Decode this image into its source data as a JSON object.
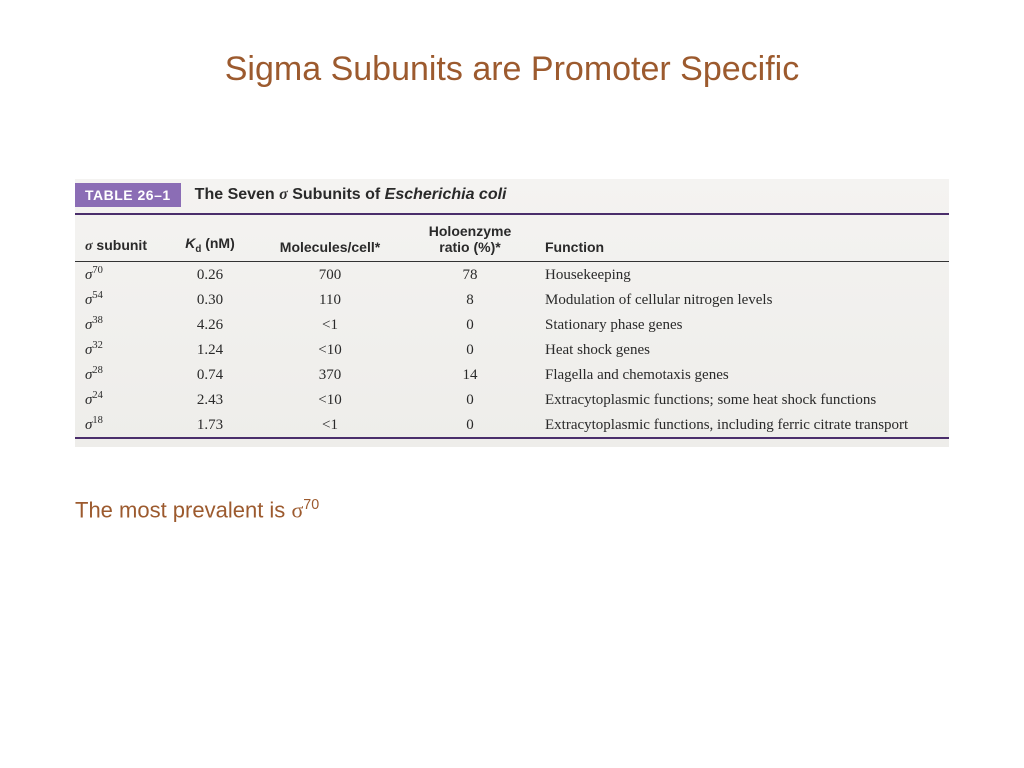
{
  "colors": {
    "title": "#9c5a2e",
    "table_label_bg": "#8b6db5",
    "table_label_fg": "#ffffff",
    "rule_color": "#4a2e6b",
    "text": "#2a2a2a",
    "bg_gradient_top": "#f4f3f1",
    "bg_gradient_bottom": "#eeedea",
    "footer": "#9c5a2e"
  },
  "typography": {
    "title_fontsize": 34,
    "caption_fontsize": 16,
    "header_fontsize": 14,
    "body_fontsize": 15,
    "footer_fontsize": 22
  },
  "title": "Sigma Subunits are Promoter Specific",
  "table": {
    "label": "TABLE 26–1",
    "caption_prefix": "The Seven ",
    "caption_sigma": "σ",
    "caption_mid": " Subunits of ",
    "caption_species": "Escherichia coli",
    "columns": {
      "subunit_sigma": "σ",
      "subunit_word": " subunit",
      "kd_prefix": "K",
      "kd_sub": "d",
      "kd_unit": " (nM)",
      "molecules": "Molecules/cell*",
      "ratio_line1": "Holoenzyme",
      "ratio_line2": "ratio (%)*",
      "function": "Function"
    },
    "rows": [
      {
        "sup": "70",
        "kd": "0.26",
        "mol": "700",
        "ratio": "78",
        "fn": "Housekeeping"
      },
      {
        "sup": "54",
        "kd": "0.30",
        "mol": "110",
        "ratio": "8",
        "fn": "Modulation of cellular nitrogen levels"
      },
      {
        "sup": "38",
        "kd": "4.26",
        "mol": "<1",
        "ratio": "0",
        "fn": "Stationary phase genes"
      },
      {
        "sup": "32",
        "kd": "1.24",
        "mol": "<10",
        "ratio": "0",
        "fn": "Heat shock genes"
      },
      {
        "sup": "28",
        "kd": "0.74",
        "mol": "370",
        "ratio": "14",
        "fn": "Flagella and chemotaxis genes"
      },
      {
        "sup": "24",
        "kd": "2.43",
        "mol": "<10",
        "ratio": "0",
        "fn": "Extracytoplasmic functions; some heat shock functions"
      },
      {
        "sup": "18",
        "kd": "1.73",
        "mol": "<1",
        "ratio": "0",
        "fn": "Extracytoplasmic functions, including ferric citrate transport"
      }
    ]
  },
  "footer": {
    "text": "The most prevalent is ",
    "sigma": "σ",
    "sup": "70"
  }
}
